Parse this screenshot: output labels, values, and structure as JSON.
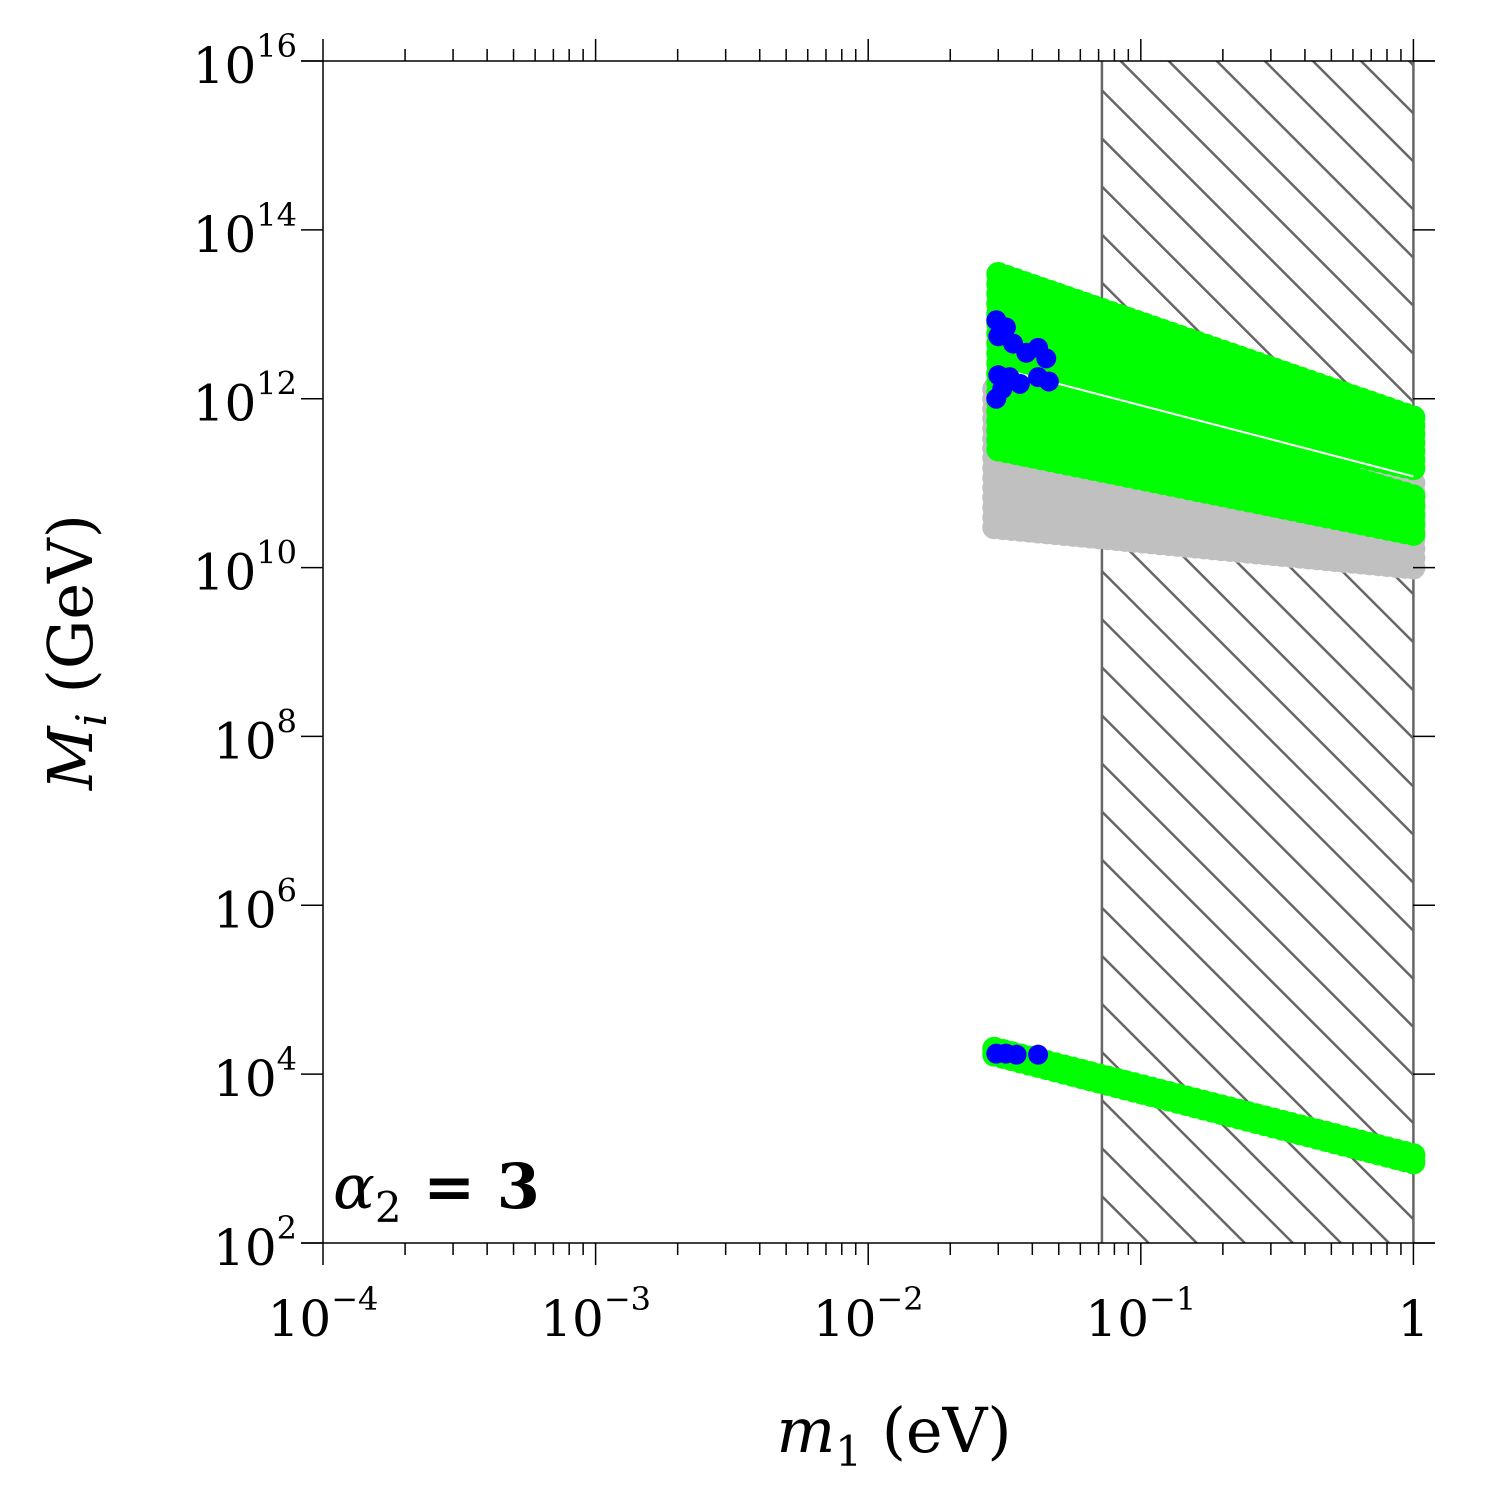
{
  "chart_data": {
    "type": "scatter",
    "title": "",
    "xlabel": {
      "var": "m",
      "sub": "1",
      "unit": " (eV)"
    },
    "ylabel": {
      "var": "M",
      "sub": "i",
      "unit": " (GeV)"
    },
    "x_scale": "log",
    "y_scale": "log",
    "xlim": [
      0.0001,
      1.2
    ],
    "ylim": [
      100,
      1e+16
    ],
    "grid": false,
    "x_ticks": [
      {
        "value": 0.0001,
        "base": "10",
        "exp": "−4"
      },
      {
        "value": 0.001,
        "base": "10",
        "exp": "−3"
      },
      {
        "value": 0.01,
        "base": "10",
        "exp": "−2"
      },
      {
        "value": 0.1,
        "base": "10",
        "exp": "−1"
      },
      {
        "value": 1,
        "base": "1",
        "exp": ""
      }
    ],
    "y_ticks": [
      {
        "value": 100,
        "base": "10",
        "exp": "2"
      },
      {
        "value": 10000,
        "base": "10",
        "exp": "4"
      },
      {
        "value": 1000000,
        "base": "10",
        "exp": "6"
      },
      {
        "value": 100000000,
        "base": "10",
        "exp": "8"
      },
      {
        "value": 10000000000,
        "base": "10",
        "exp": "10"
      },
      {
        "value": 1000000000000,
        "base": "10",
        "exp": "12"
      },
      {
        "value": 100000000000000,
        "base": "10",
        "exp": "14"
      },
      {
        "value": 10000000000000000,
        "base": "10",
        "exp": "16"
      }
    ],
    "annotation": {
      "var": "α",
      "sub": "2",
      "rest": " = 3"
    },
    "excluded_region": {
      "x_from": 0.072,
      "x_to": 1,
      "pattern": "hatched",
      "color": "#666666"
    },
    "series": [
      {
        "color": "#c0c0c0",
        "bands": [
          {
            "x": [
              0.029,
              1.0
            ],
            "y_top_start": 1300000000000.0,
            "y_top_end": 100000000000.0,
            "y_bot_start": 30000000000.0,
            "y_bot_end": 10000000000.0
          }
        ]
      },
      {
        "color": "#00ff00",
        "bands": [
          {
            "x": [
              0.03,
              1.0
            ],
            "y_top_start": 30000000000000.0,
            "y_top_end": 600000000000.0,
            "y_bot_start": 2000000000000.0,
            "y_bot_end": 150000000000.0
          },
          {
            "x": [
              0.03,
              1.0
            ],
            "y_top_start": 2000000000000.0,
            "y_top_end": 70000000000.0,
            "y_bot_start": 250000000000.0,
            "y_bot_end": 25000000000.0
          },
          {
            "x": [
              0.029,
              1.0
            ],
            "y_top_start": 20000.0,
            "y_top_end": 1100.0,
            "y_bot_start": 17000.0,
            "y_bot_end": 900.0
          }
        ],
        "divider": {
          "x": [
            0.03,
            1.0
          ],
          "y_start": 2300000000000.0,
          "y_end": 120000000000.0
        }
      },
      {
        "color": "#0000ff",
        "points": [
          {
            "x": 0.0295,
            "y": 8500000000000.0
          },
          {
            "x": 0.03,
            "y": 5500000000000.0
          },
          {
            "x": 0.032,
            "y": 7000000000000.0
          },
          {
            "x": 0.034,
            "y": 4500000000000.0
          },
          {
            "x": 0.038,
            "y": 3500000000000.0
          },
          {
            "x": 0.042,
            "y": 4000000000000.0
          },
          {
            "x": 0.045,
            "y": 3000000000000.0
          },
          {
            "x": 0.03,
            "y": 1900000000000.0
          },
          {
            "x": 0.0295,
            "y": 1000000000000.0
          },
          {
            "x": 0.031,
            "y": 1300000000000.0
          },
          {
            "x": 0.033,
            "y": 1800000000000.0
          },
          {
            "x": 0.036,
            "y": 1500000000000.0
          },
          {
            "x": 0.042,
            "y": 1800000000000.0
          },
          {
            "x": 0.046,
            "y": 1600000000000.0
          },
          {
            "x": 0.0295,
            "y": 17500.0
          },
          {
            "x": 0.032,
            "y": 17500.0
          },
          {
            "x": 0.035,
            "y": 17000.0
          },
          {
            "x": 0.042,
            "y": 17000.0
          }
        ]
      }
    ]
  }
}
